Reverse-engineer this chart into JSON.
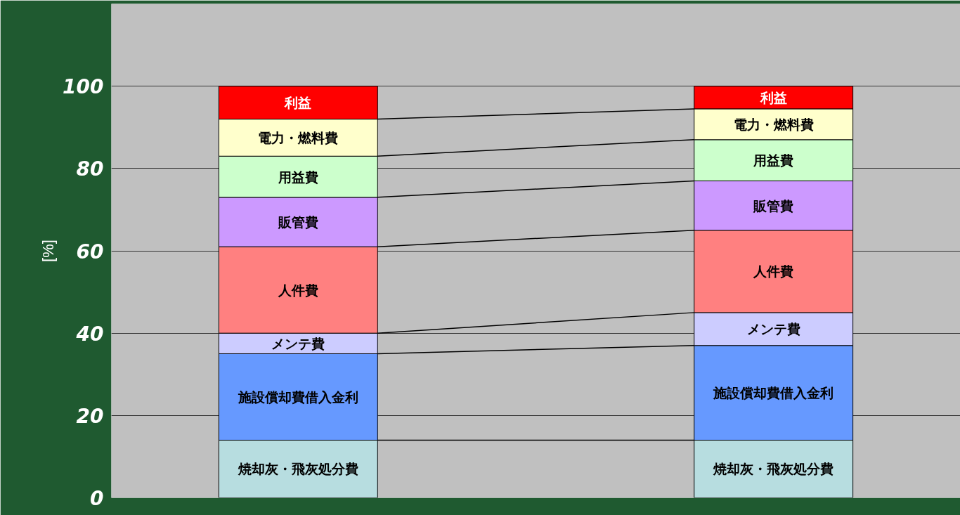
{
  "chart_data": {
    "type": "bar",
    "stacked": true,
    "ylabel": "[%]",
    "categories": [
      null,
      null
    ],
    "ylim": [
      0,
      120
    ],
    "yticks": [
      0,
      20,
      40,
      60,
      80,
      100
    ],
    "grid": "y",
    "tick_labels": "y",
    "series": [
      {
        "name": "焼却灰・飛灰処分費",
        "color": "#b7dde0",
        "values": [
          14,
          14
        ]
      },
      {
        "name": "施設償却費借入金利",
        "color": "#6699ff",
        "values": [
          21,
          23
        ]
      },
      {
        "name": "メンテ費",
        "color": "#ccccff",
        "values": [
          5,
          8
        ]
      },
      {
        "name": "人件費",
        "color": "#ff8080",
        "values": [
          21,
          20
        ]
      },
      {
        "name": "販管費",
        "color": "#cc99ff",
        "values": [
          12,
          12
        ]
      },
      {
        "name": "用益費",
        "color": "#ccffcc",
        "values": [
          10,
          10
        ]
      },
      {
        "name": "電力・燃料費",
        "color": "#ffffcc",
        "values": [
          9,
          7.5
        ]
      },
      {
        "name": "利益",
        "color": "#ff0000",
        "values": [
          8,
          5.5
        ]
      }
    ]
  }
}
